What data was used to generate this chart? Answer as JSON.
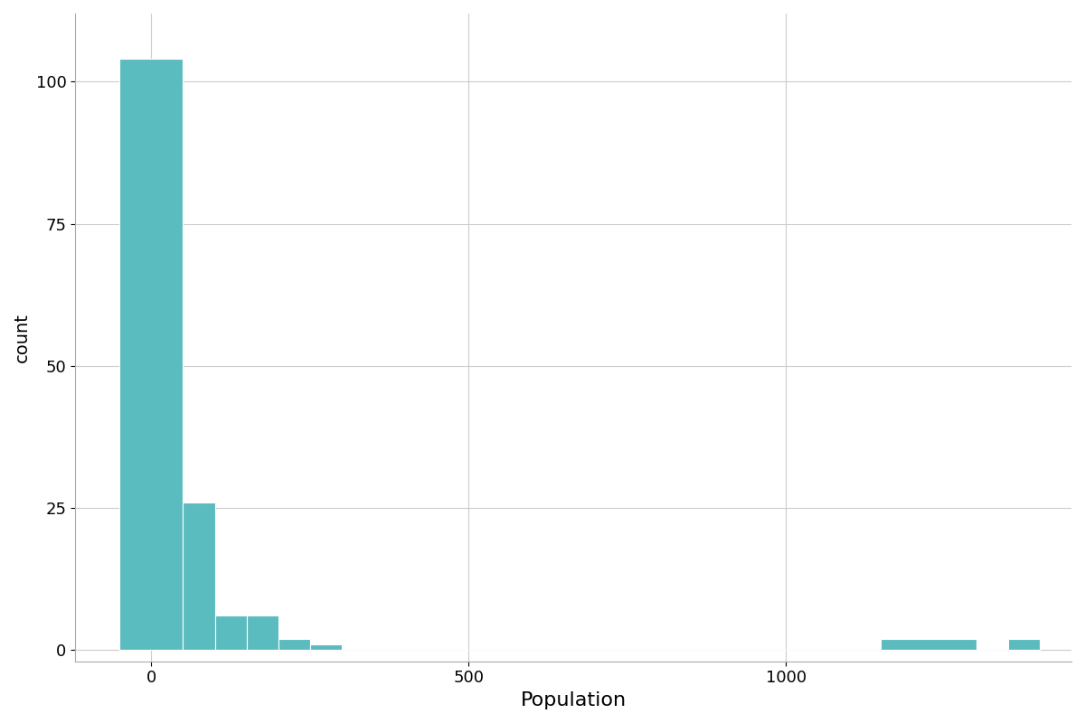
{
  "xlabel": "Population",
  "ylabel": "count",
  "bar_color": "#5bbcbf",
  "edge_color": "white",
  "background_color": "#ffffff",
  "grid_color": "#cccccc",
  "xlim": [
    -120,
    1450
  ],
  "ylim": [
    -2,
    112
  ],
  "yticks": [
    0,
    25,
    50,
    75,
    100
  ],
  "xticks": [
    0,
    500,
    1000
  ],
  "figsize": [
    12,
    8
  ],
  "dpi": 100,
  "bin_counts": [
    104,
    26,
    6,
    6,
    2,
    1,
    0,
    0,
    0,
    0,
    0,
    0,
    0,
    0,
    0,
    0,
    0,
    0,
    0,
    0,
    0,
    0,
    2,
    0,
    2
  ],
  "bin_edges": [
    -50,
    50,
    100,
    150,
    200,
    250,
    300,
    350,
    400,
    450,
    500,
    550,
    600,
    650,
    700,
    750,
    800,
    850,
    900,
    950,
    1000,
    1100,
    1150,
    1300,
    1350,
    1400
  ]
}
